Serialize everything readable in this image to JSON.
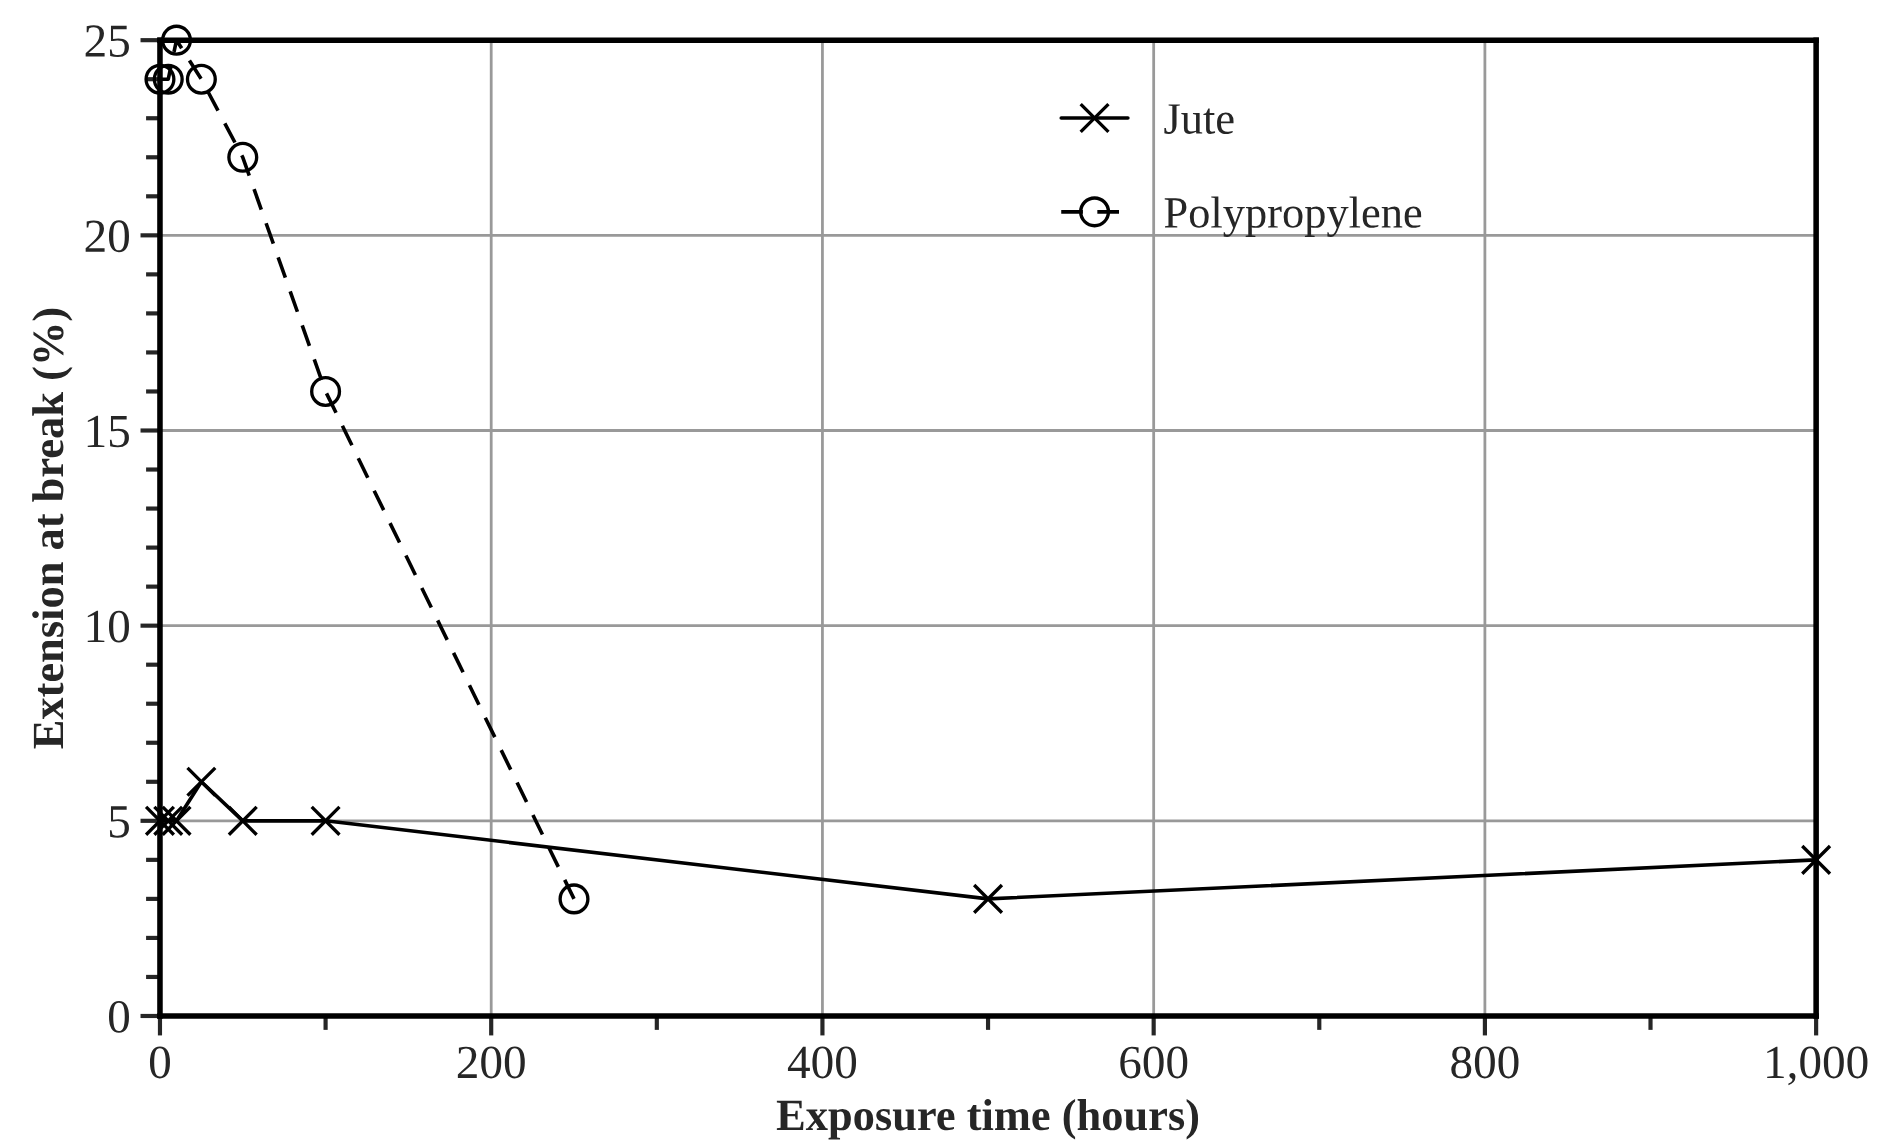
{
  "chart_data": {
    "type": "line",
    "xlabel": "Exposure time (hours)",
    "ylabel": "Extension at break (%)",
    "xlim": [
      0,
      1000
    ],
    "xticks": [
      0,
      {
        "value": 100,
        "label": null
      },
      200,
      {
        "value": 300,
        "label": null
      },
      400,
      {
        "value": 500,
        "label": null
      },
      600,
      {
        "value": 700,
        "label": null
      },
      800,
      {
        "value": 900,
        "label": null
      },
      {
        "value": 1000,
        "label": "1,000"
      }
    ],
    "ylim": [
      0,
      25
    ],
    "yticks": [
      0,
      {
        "value": 1,
        "label": null
      },
      {
        "value": 2,
        "label": null
      },
      {
        "value": 3,
        "label": null
      },
      {
        "value": 4,
        "label": null
      },
      5,
      {
        "value": 6,
        "label": null
      },
      {
        "value": 7,
        "label": null
      },
      {
        "value": 8,
        "label": null
      },
      {
        "value": 9,
        "label": null
      },
      10,
      {
        "value": 11,
        "label": null
      },
      {
        "value": 12,
        "label": null
      },
      {
        "value": 13,
        "label": null
      },
      {
        "value": 14,
        "label": null
      },
      15,
      {
        "value": 16,
        "label": null
      },
      {
        "value": 17,
        "label": null
      },
      {
        "value": 18,
        "label": null
      },
      {
        "value": 19,
        "label": null
      },
      20,
      {
        "value": 21,
        "label": null
      },
      {
        "value": 22,
        "label": null
      },
      {
        "value": 23,
        "label": null
      },
      {
        "value": 24,
        "label": null
      },
      25
    ],
    "grid": true,
    "legend": "top right",
    "series": [
      {
        "name": "Jute",
        "color": "#000000",
        "marker": "cross",
        "line_style": "solid",
        "x": [
          0,
          5,
          10,
          25,
          50,
          100,
          500,
          1000
        ],
        "values": [
          5,
          5,
          5,
          6,
          5,
          5,
          3,
          4
        ]
      },
      {
        "name": "Polypropylene",
        "color": "#000000",
        "marker": "circle",
        "line_style": "dashed",
        "x": [
          0,
          5,
          10,
          25,
          50,
          100,
          250
        ],
        "values": [
          24,
          24,
          25,
          24,
          22,
          16,
          3
        ]
      }
    ]
  }
}
